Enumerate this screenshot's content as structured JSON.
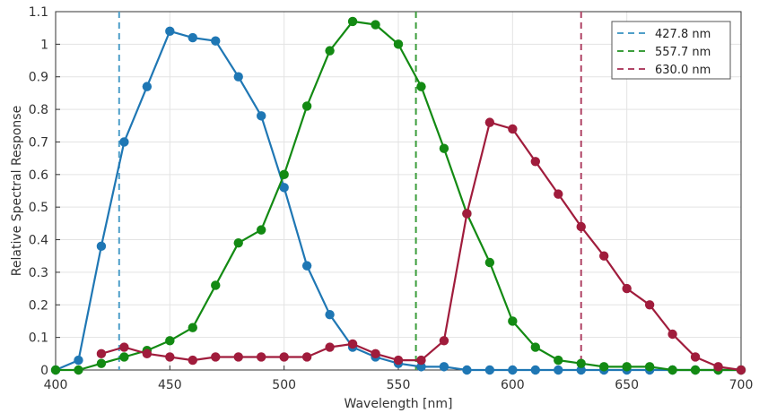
{
  "chart_data": {
    "type": "line",
    "xlabel": "Wavelength [nm]",
    "ylabel": "Relative Spectral Response",
    "xlim": [
      400,
      700
    ],
    "ylim": [
      0,
      1.1
    ],
    "x_ticks": [
      400,
      450,
      500,
      550,
      600,
      650,
      700
    ],
    "y_ticks": [
      0,
      0.1,
      0.2,
      0.3,
      0.4,
      0.5,
      0.6,
      0.7,
      0.8,
      0.9,
      1,
      1.1
    ],
    "grid": true,
    "legend_position": "top-right",
    "x": [
      400,
      410,
      420,
      430,
      440,
      450,
      460,
      470,
      480,
      490,
      500,
      510,
      520,
      530,
      540,
      550,
      560,
      570,
      580,
      590,
      600,
      610,
      620,
      630,
      640,
      650,
      660,
      670,
      680,
      690,
      700
    ],
    "series": [
      {
        "color": "#1f77b4",
        "values": [
          0,
          0.03,
          0.38,
          0.7,
          0.87,
          1.04,
          1.02,
          1.01,
          0.9,
          0.78,
          0.56,
          0.32,
          0.17,
          0.07,
          0.04,
          0.02,
          0.01,
          0.01,
          0,
          0,
          0,
          0,
          0,
          0,
          0,
          0,
          0,
          0,
          0,
          0,
          0
        ]
      },
      {
        "color": "#138a13",
        "values": [
          0,
          0,
          0.02,
          0.04,
          0.06,
          0.09,
          0.13,
          0.26,
          0.39,
          0.43,
          0.6,
          0.81,
          0.98,
          1.07,
          1.06,
          1.0,
          0.87,
          0.68,
          0.48,
          0.33,
          0.15,
          0.07,
          0.03,
          0.02,
          0.01,
          0.01,
          0.01,
          0,
          0,
          0,
          0
        ]
      },
      {
        "color": "#a01c3c",
        "values": [
          null,
          null,
          0.05,
          0.07,
          0.05,
          0.04,
          0.03,
          0.04,
          0.04,
          0.04,
          0.04,
          0.04,
          0.07,
          0.08,
          0.05,
          0.03,
          0.03,
          0.09,
          0.48,
          0.76,
          0.74,
          0.64,
          0.54,
          0.44,
          0.35,
          0.25,
          0.2,
          0.11,
          0.04,
          0.01,
          0
        ]
      }
    ],
    "vlines": [
      {
        "x": 427.8,
        "label": "427.8 nm",
        "color": "#4f9fc9"
      },
      {
        "x": 557.7,
        "label": "557.7 nm",
        "color": "#3c9e3c"
      },
      {
        "x": 630.0,
        "label": "630.0 nm",
        "color": "#b04466"
      }
    ]
  }
}
